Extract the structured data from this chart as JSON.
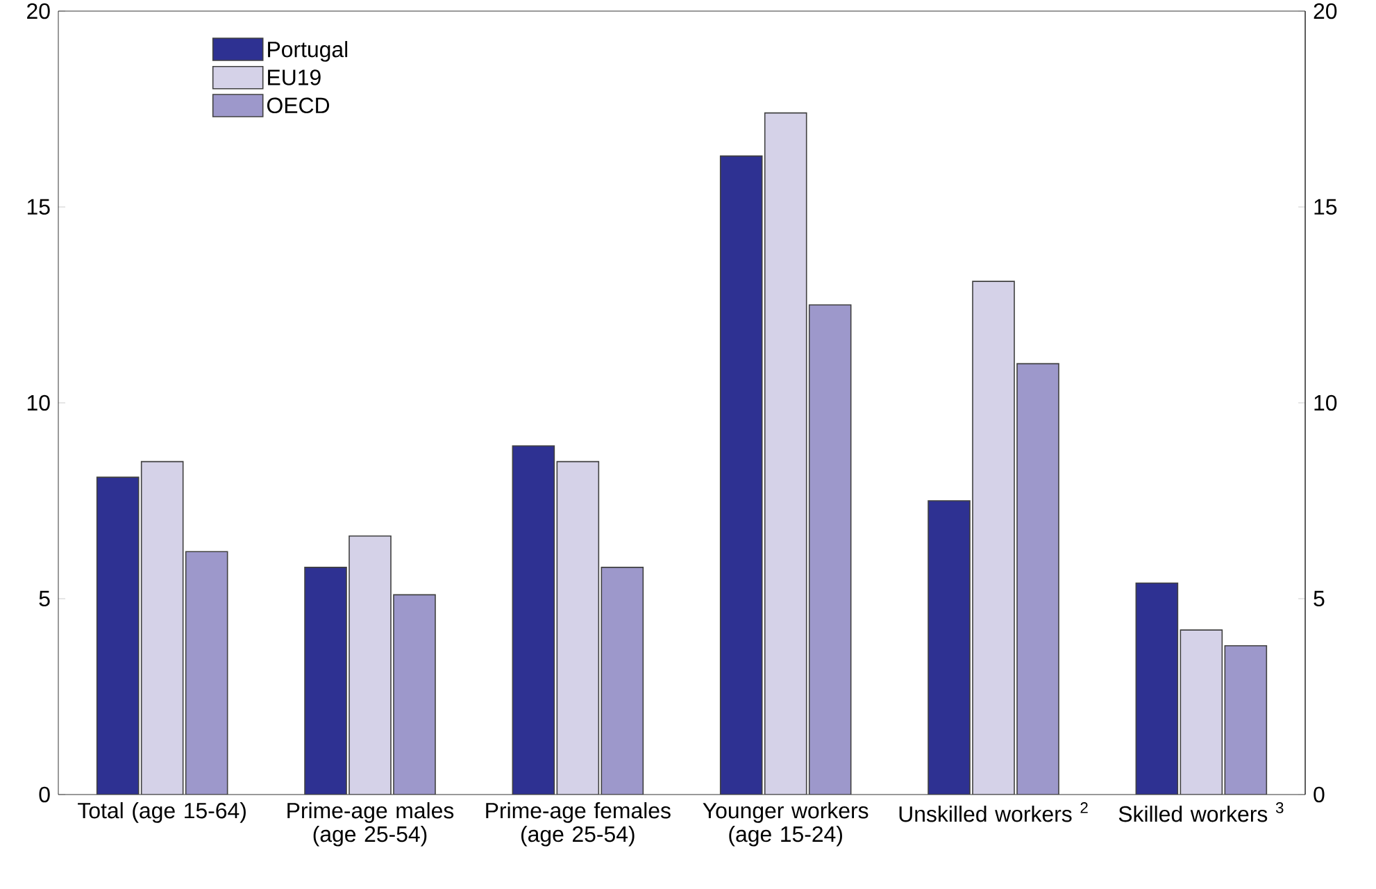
{
  "chart_data": {
    "type": "bar",
    "categories": [
      "Total (age 15-64)",
      "Prime-age males (age 25-54)",
      "Prime-age females (age 25-54)",
      "Younger workers (age 15-24)",
      "Unskilled workers $^{2}$",
      "Skilled workers $^{3}$"
    ],
    "series": [
      {
        "name": "Portugal",
        "color": "#2e3192",
        "values": [
          8.1,
          5.8,
          8.9,
          16.3,
          7.5,
          5.4
        ]
      },
      {
        "name": "EU19",
        "color": "#d5d2e8",
        "values": [
          8.5,
          6.6,
          8.5,
          17.4,
          13.1,
          4.2
        ]
      },
      {
        "name": "OECD",
        "color": "#9d98cb",
        "values": [
          6.2,
          5.1,
          5.8,
          12.5,
          11.0,
          3.8
        ]
      }
    ],
    "ylim": [
      0,
      20
    ],
    "yticks": [
      0,
      5,
      10,
      15,
      20
    ],
    "y2lim": [
      0,
      20
    ],
    "y2ticks": [
      0,
      5,
      10,
      15,
      20
    ],
    "legend": "top left"
  }
}
